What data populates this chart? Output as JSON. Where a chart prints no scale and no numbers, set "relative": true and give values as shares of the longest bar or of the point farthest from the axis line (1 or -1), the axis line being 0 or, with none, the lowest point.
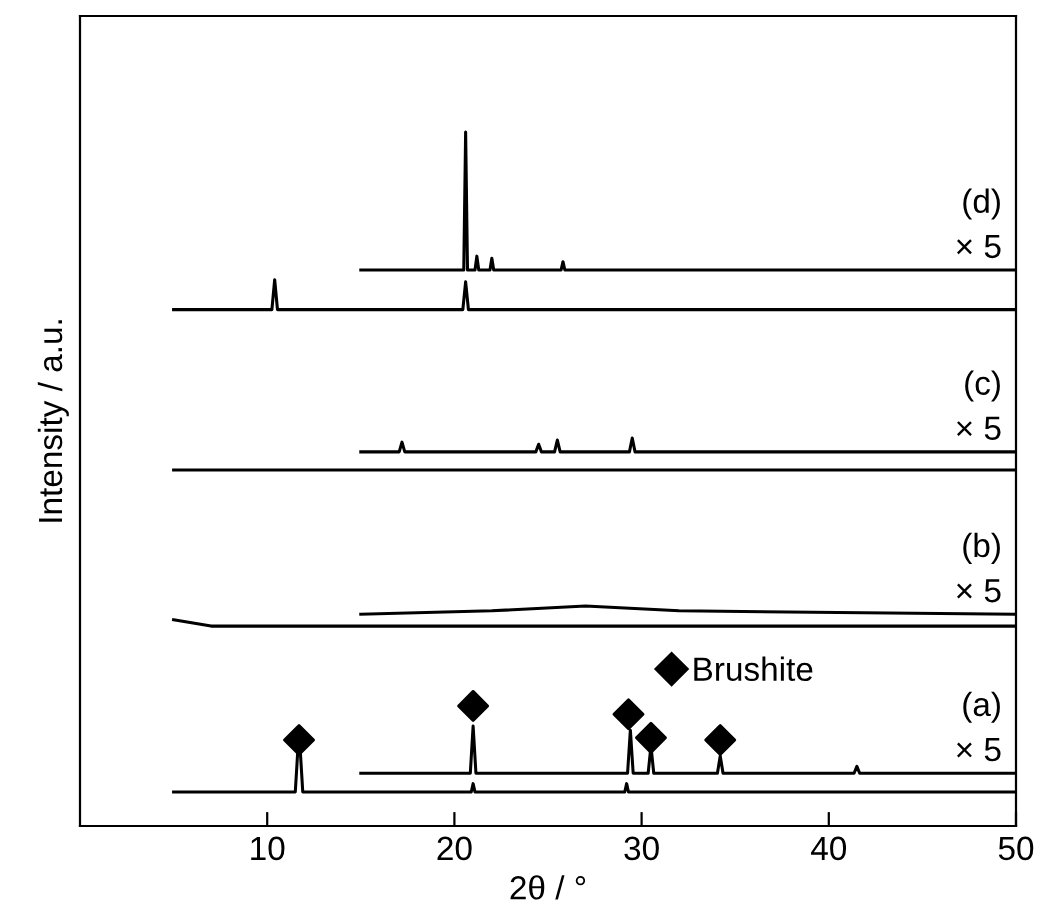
{
  "chart_data": {
    "type": "line",
    "xlabel": "2θ / °",
    "ylabel": "Intensity / a.u.",
    "relative": true,
    "xlim": [
      0,
      50
    ],
    "xticks": [
      10,
      20,
      30,
      40,
      50
    ],
    "tick_labels": "x",
    "grid": false,
    "legend": "right",
    "marker": "none",
    "line_style": "solid",
    "series": [
      {
        "color": "#000000",
        "x": [
          5,
          11.5,
          11.7,
          11.9,
          20.9,
          21.0,
          21.1,
          29.1,
          29.2,
          29.3,
          50
        ],
        "values": [
          0.049,
          0.049,
          0.138,
          0.049,
          0.049,
          0.061,
          0.049,
          0.049,
          0.061,
          0.049,
          0.049
        ]
      },
      {
        "color": "#000000",
        "x": [
          15,
          20.85,
          21.0,
          21.15,
          29.25,
          29.4,
          29.55,
          30.35,
          30.5,
          30.65,
          34.05,
          34.2,
          34.35,
          41.35,
          41.5,
          41.65,
          50
        ],
        "values": [
          0.076,
          0.076,
          0.144,
          0.076,
          0.076,
          0.138,
          0.076,
          0.076,
          0.115,
          0.076,
          0.076,
          0.101,
          0.076,
          0.076,
          0.086,
          0.076,
          0.076
        ]
      },
      {
        "color": "#000000",
        "x": [
          5,
          7,
          50
        ],
        "values": [
          0.297,
          0.288,
          0.288
        ]
      },
      {
        "color": "#000000",
        "x": [
          15,
          22,
          27,
          32,
          50
        ],
        "values": [
          0.305,
          0.31,
          0.317,
          0.31,
          0.305
        ]
      },
      {
        "color": "#000000",
        "x": [
          5,
          50
        ],
        "values": [
          0.513,
          0.513
        ]
      },
      {
        "color": "#000000",
        "x": [
          15,
          17.05,
          17.2,
          17.35,
          24.35,
          24.5,
          24.65,
          25.35,
          25.5,
          25.65,
          29.35,
          29.5,
          29.65,
          50
        ],
        "values": [
          0.539,
          0.539,
          0.553,
          0.539,
          0.539,
          0.55,
          0.539,
          0.539,
          0.556,
          0.539,
          0.539,
          0.559,
          0.539,
          0.539
        ]
      },
      {
        "color": "#000000",
        "x": [
          5,
          10.25,
          10.4,
          10.55,
          20.45,
          20.6,
          20.75,
          50
        ],
        "values": [
          0.744,
          0.744,
          0.787,
          0.744,
          0.744,
          0.784,
          0.744,
          0.744
        ]
      },
      {
        "color": "#000000",
        "x": [
          15,
          20.5,
          20.6,
          20.7,
          21.1,
          21.2,
          21.3,
          21.9,
          22.0,
          22.1,
          25.7,
          25.8,
          25.9,
          50
        ],
        "values": [
          0.801,
          0.801,
          1.0,
          0.801,
          0.801,
          0.821,
          0.801,
          0.801,
          0.818,
          0.801,
          0.801,
          0.813,
          0.801,
          0.801
        ]
      },
      {
        "type": "scatter",
        "name": "Brushite",
        "marker": "diamond",
        "color": "#000000",
        "x": [
          11.7,
          21.0,
          29.3,
          30.5,
          34.2
        ],
        "values": [
          0.124,
          0.173,
          0.161,
          0.127,
          0.124
        ]
      }
    ],
    "annotations": [
      "(d)",
      "× 5",
      "(c)",
      "× 5",
      "(b)",
      "× 5",
      "(a)",
      "× 5"
    ]
  }
}
